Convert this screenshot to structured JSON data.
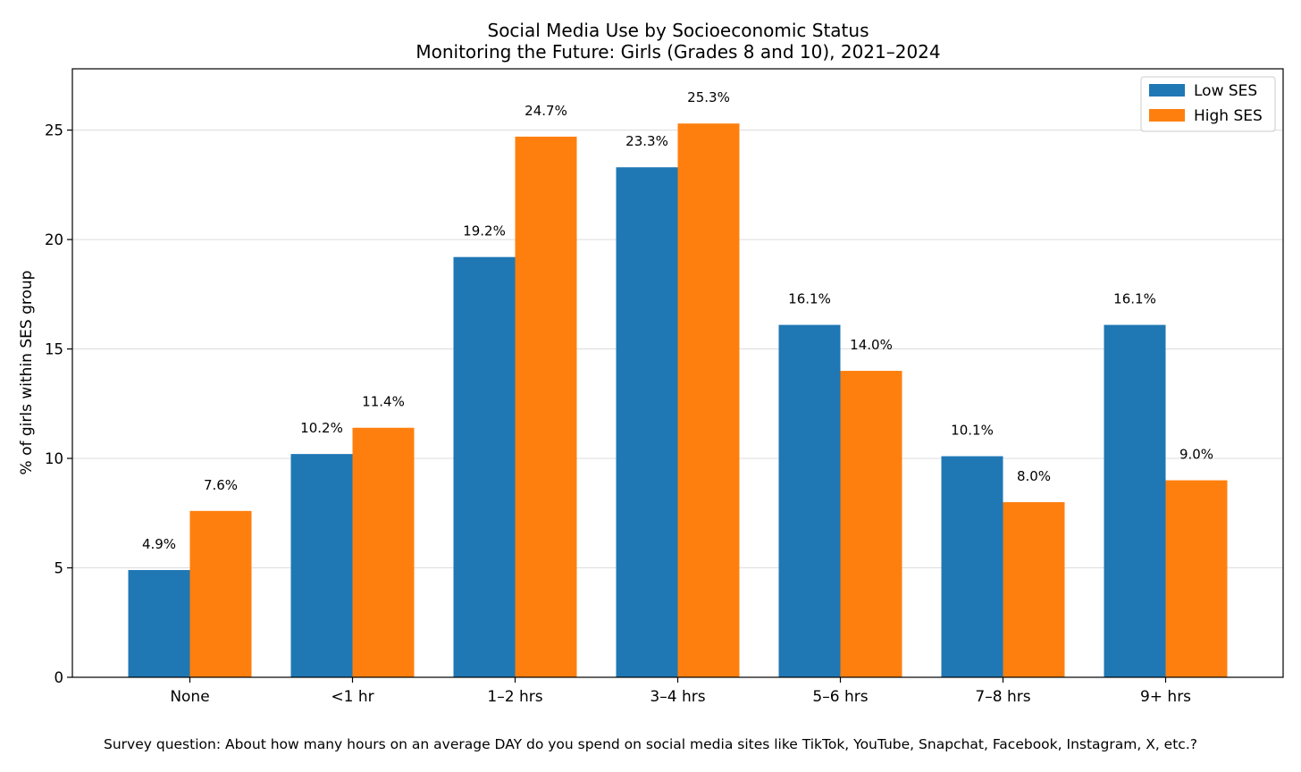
{
  "chart_data": {
    "type": "bar",
    "title": "Social Media Use by Socioeconomic Status",
    "subtitle": "Monitoring the Future: Girls (Grades 8 and 10), 2021–2024",
    "xlabel": "",
    "ylabel": "% of girls within SES group",
    "ylim": [
      0,
      27.8
    ],
    "yticks": [
      0,
      5,
      10,
      15,
      20,
      25
    ],
    "ytick_labels": [
      "0",
      "5",
      "10",
      "15",
      "20",
      "25"
    ],
    "grid": "horizontal",
    "legend_position": "top-right",
    "categories": [
      "None",
      "<1 hr",
      "1–2 hrs",
      "3–4 hrs",
      "5–6 hrs",
      "7–8 hrs",
      "9+ hrs"
    ],
    "series": [
      {
        "name": "Low SES",
        "color": "#1f77b4",
        "values": [
          4.9,
          10.2,
          19.2,
          23.3,
          16.1,
          10.1,
          16.1
        ],
        "labels": [
          "4.9%",
          "10.2%",
          "19.2%",
          "23.3%",
          "16.1%",
          "10.1%",
          "16.1%"
        ]
      },
      {
        "name": "High SES",
        "color": "#ff7f0e",
        "values": [
          7.6,
          11.4,
          24.7,
          25.3,
          14.0,
          8.0,
          9.0
        ],
        "labels": [
          "7.6%",
          "11.4%",
          "24.7%",
          "25.3%",
          "14.0%",
          "8.0%",
          "9.0%"
        ]
      }
    ],
    "footnote": "Survey question: About how many hours on an average DAY do you spend on social media sites like TikTok, YouTube, Snapchat, Facebook, Instagram, X, etc.?"
  }
}
